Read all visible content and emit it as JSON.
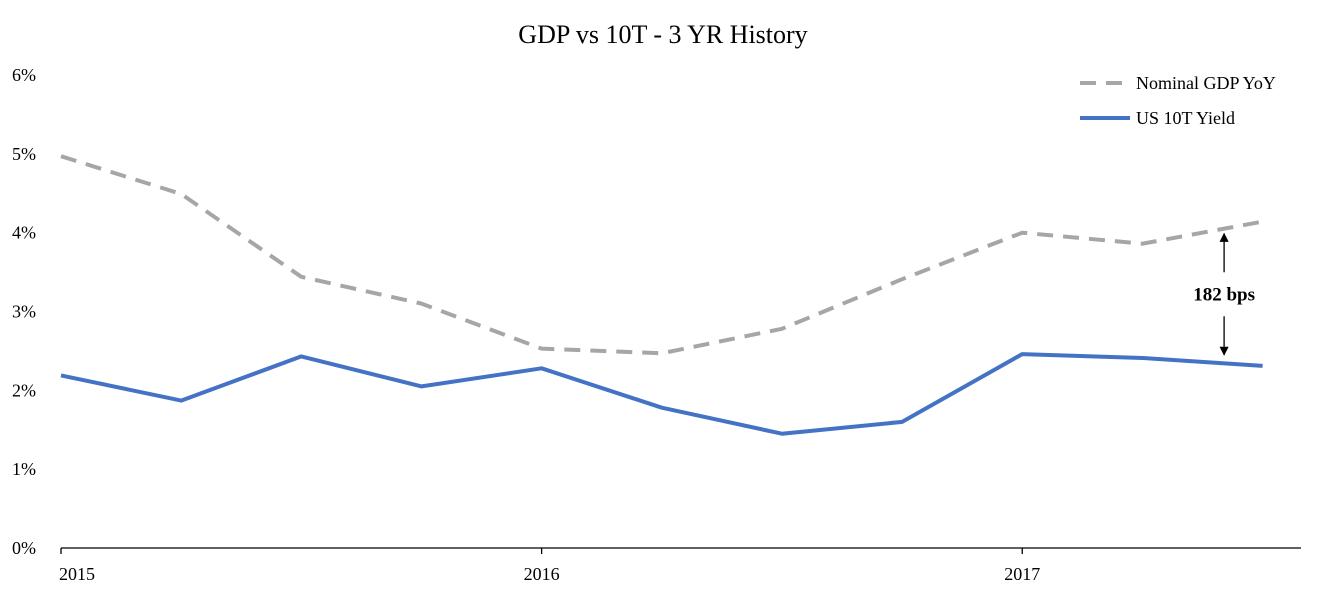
{
  "chart_data": {
    "type": "line",
    "title": "GDP vs 10T - 3 YR History",
    "xlabel": "",
    "ylabel": "",
    "x": [
      2015.0,
      2015.25,
      2015.5,
      2015.75,
      2016.0,
      2016.25,
      2016.5,
      2016.75,
      2017.0,
      2017.25,
      2017.5
    ],
    "x_ticks": [
      2015,
      2016,
      2017
    ],
    "x_tick_labels": [
      "2015",
      "2016",
      "2017"
    ],
    "xlim": [
      2015.0,
      2017.58
    ],
    "ylim": [
      0,
      6
    ],
    "y_ticks": [
      0,
      1,
      2,
      3,
      4,
      5,
      6
    ],
    "y_tick_labels": [
      "0%",
      "1%",
      "2%",
      "3%",
      "4%",
      "5%",
      "6%"
    ],
    "grid": false,
    "legend_position": "top-right",
    "series": [
      {
        "name": "Nominal GDP YoY",
        "color": "#a6a6a6",
        "style": "dashed",
        "values": [
          4.97,
          4.49,
          3.44,
          3.1,
          2.53,
          2.47,
          2.78,
          3.41,
          4.0,
          3.86,
          4.14
        ]
      },
      {
        "name": "US 10T Yield",
        "color": "#4472c4",
        "style": "solid",
        "values": [
          2.19,
          1.87,
          2.43,
          2.05,
          2.28,
          1.78,
          1.45,
          1.6,
          2.46,
          2.41,
          2.31
        ]
      }
    ],
    "annotations": [
      {
        "text": "182 bps",
        "x": 2017.42,
        "y_from": 2.31,
        "y_to": 4.14
      }
    ]
  }
}
